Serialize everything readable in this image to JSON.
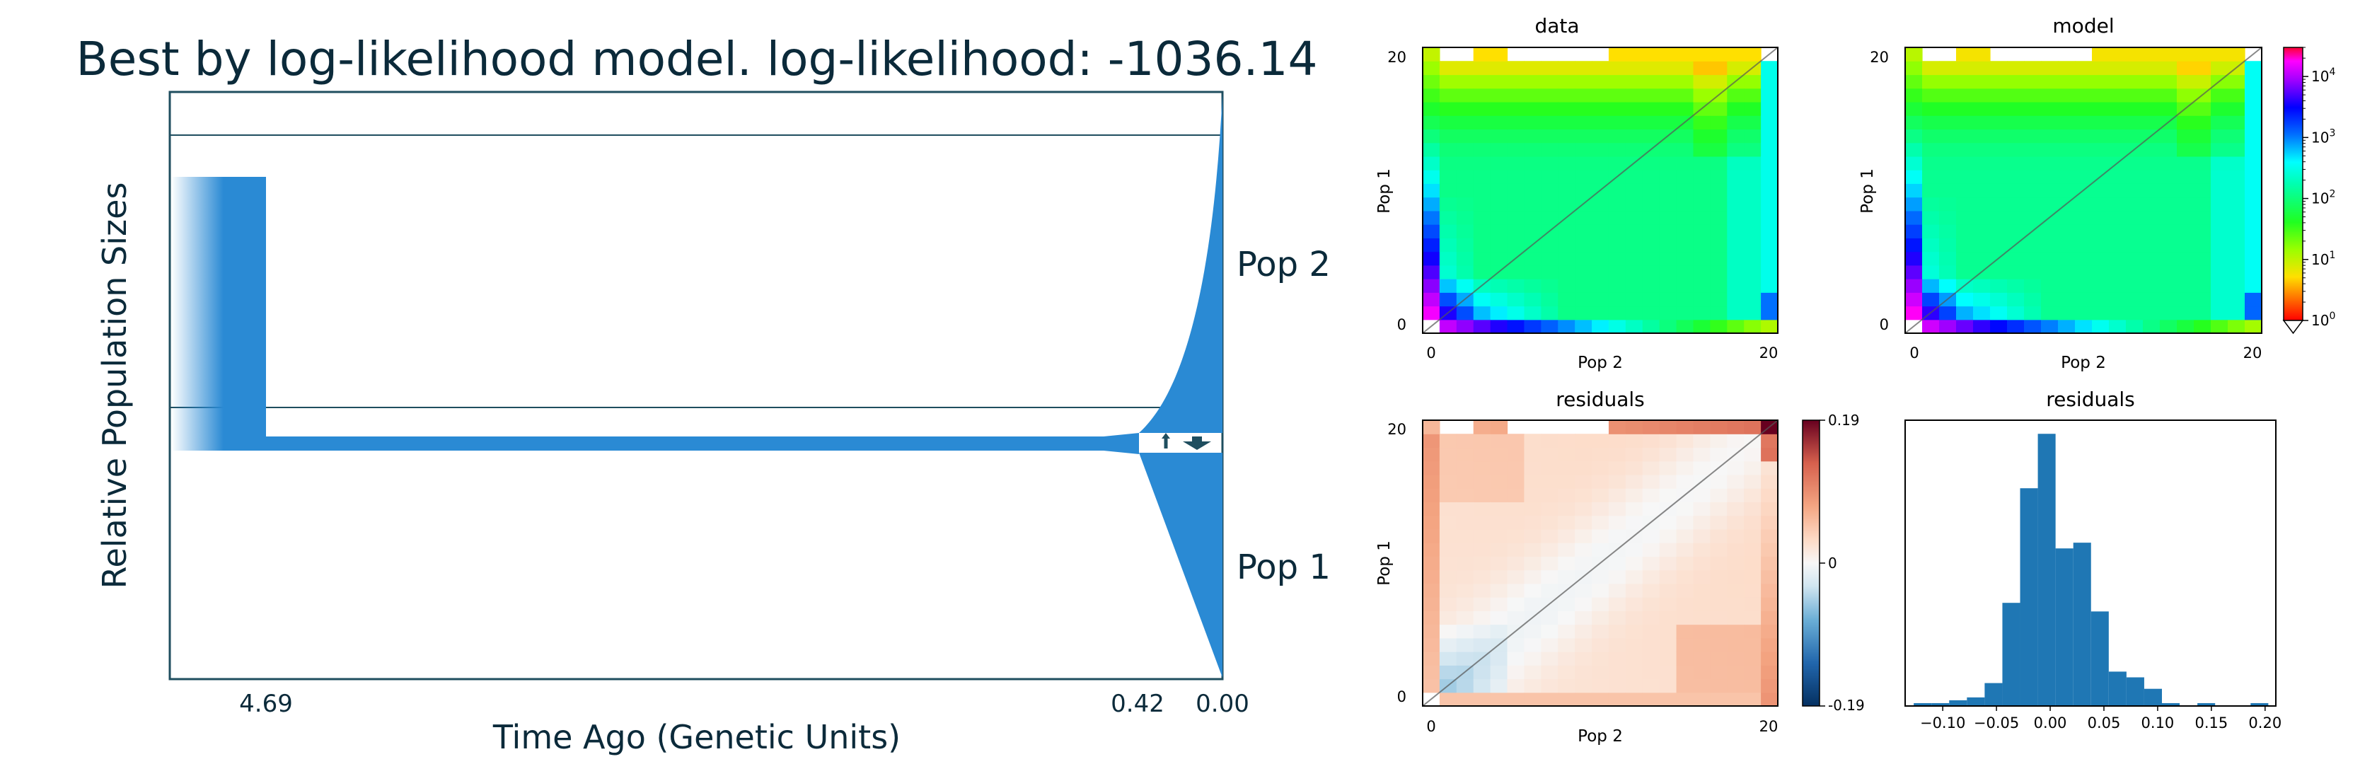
{
  "figure": {
    "title": "Best by log-likelihood model. log-likelihood: -1036.14"
  },
  "chart_data": [
    {
      "type": "demographic-model",
      "title": "Best by log-likelihood model. log-likelihood: -1036.14",
      "xlabel": "Time Ago (Genetic Units)",
      "ylabel": "Relative Population Sizes",
      "xtick_labels": [
        "4.69",
        "0.42",
        "0.00"
      ],
      "split_time": 4.69,
      "growth_start_time": 0.42,
      "populations": [
        {
          "name": "Pop 2",
          "position": "upper",
          "growth": "exponential"
        },
        {
          "name": "Pop 1",
          "position": "lower",
          "growth": "linear"
        }
      ],
      "color": "#2a8ad4",
      "line_color": "#1f4e5f"
    },
    {
      "type": "heatmap",
      "title": "data",
      "xlabel": "Pop 2",
      "ylabel": "Pop 1",
      "xticks": [
        "0",
        "20"
      ],
      "yticks": [
        "0",
        "20"
      ],
      "grid_size": 21,
      "scale": "log",
      "colormap": "hsv"
    },
    {
      "type": "heatmap",
      "title": "model",
      "xlabel": "Pop 2",
      "ylabel": "Pop 1",
      "xticks": [
        "0",
        "20"
      ],
      "yticks": [
        "0",
        "20"
      ],
      "grid_size": 21,
      "scale": "log",
      "colormap": "hsv",
      "colorbar": {
        "ticks": [
          {
            "base": "10",
            "exp": "4"
          },
          {
            "base": "10",
            "exp": "3"
          },
          {
            "base": "10",
            "exp": "2"
          },
          {
            "base": "10",
            "exp": "1"
          },
          {
            "base": "10",
            "exp": "0"
          }
        ],
        "range": [
          1,
          30000
        ]
      }
    },
    {
      "type": "heatmap",
      "title": "residuals",
      "xlabel": "Pop 2",
      "ylabel": "Pop 1",
      "xticks": [
        "0",
        "20"
      ],
      "yticks": [
        "0",
        "20"
      ],
      "grid_size": 21,
      "colormap": "RdBu_r",
      "colorbar": {
        "ticks": [
          "0.19",
          "0",
          "-0.19"
        ],
        "range": [
          -0.19,
          0.19
        ]
      }
    },
    {
      "type": "bar",
      "title": "residuals",
      "xtick_labels": [
        "−0.10",
        "−0.05",
        "0.00",
        "0.05",
        "0.10",
        "0.15",
        "0.20"
      ],
      "xlim": [
        -0.135,
        0.21
      ],
      "bin_width": 0.0165,
      "bin_start": -0.127,
      "counts": [
        1,
        1,
        2,
        3,
        8,
        36,
        76,
        95,
        55,
        57,
        33,
        12,
        10,
        6,
        1,
        0,
        1,
        0,
        0,
        1
      ]
    }
  ]
}
